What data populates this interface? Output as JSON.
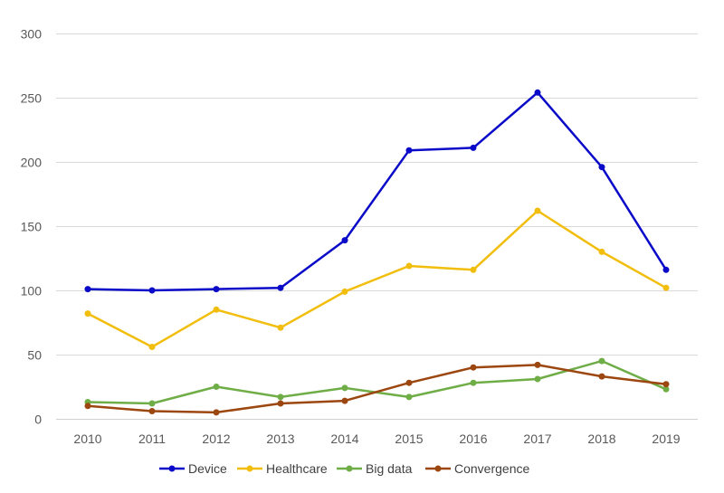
{
  "chart_data": {
    "type": "line",
    "title": "",
    "xlabel": "",
    "ylabel": "",
    "categories": [
      "2010",
      "2011",
      "2012",
      "2013",
      "2014",
      "2015",
      "2016",
      "2017",
      "2018",
      "2019"
    ],
    "ylim": [
      0,
      300
    ],
    "yticks": [
      0,
      50,
      100,
      150,
      200,
      250,
      300
    ],
    "grid": "horizontal",
    "legend_position": "bottom",
    "series": [
      {
        "name": "Device",
        "color": "#0A0AC8",
        "values": [
          101,
          100,
          101,
          102,
          139,
          209,
          211,
          254,
          196,
          116
        ]
      },
      {
        "name": "Healthcare",
        "color": "#F2BE0E",
        "values": [
          82,
          56,
          85,
          71,
          99,
          119,
          116,
          162,
          130,
          102
        ]
      },
      {
        "name": "Big data",
        "color": "#6FAD47",
        "values": [
          13,
          12,
          25,
          17,
          24,
          17,
          28,
          31,
          45,
          23
        ]
      },
      {
        "name": "Convergence",
        "color": "#9C4710",
        "values": [
          10,
          6,
          5,
          12,
          14,
          28,
          40,
          42,
          33,
          27
        ]
      }
    ]
  }
}
